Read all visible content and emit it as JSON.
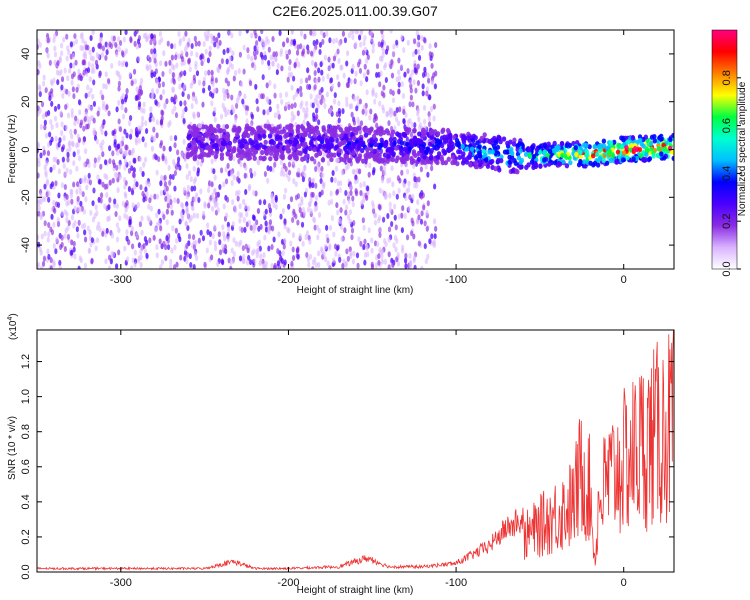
{
  "chart_data": [
    {
      "type": "heatmap",
      "title": "C2E6.2025.011.00.39.G07",
      "xlabel": "Height of straight line (km)",
      "ylabel": "Frequency (Hz)",
      "xlim": [
        -350,
        30
      ],
      "ylim": [
        -50,
        50
      ],
      "x_ticks": [
        -300,
        -200,
        -100,
        0
      ],
      "y_ticks": [
        -40,
        -20,
        0,
        20,
        40
      ],
      "colorbar": {
        "label": "Normalized spectral amplitude",
        "range": [
          0,
          1
        ],
        "ticks": [
          0.0,
          0.2,
          0.4,
          0.6,
          0.8
        ],
        "colors": [
          "#ffffff",
          "#d9b3ff",
          "#8a2be2",
          "#4b00ff",
          "#0000ff",
          "#00c0ff",
          "#00ffd0",
          "#00ff40",
          "#ffff00",
          "#ff8000",
          "#ff0000",
          "#ff0080"
        ]
      },
      "ridge": {
        "x": [
          -250,
          -200,
          -150,
          -100,
          -80,
          -60,
          -40,
          -20,
          0,
          30
        ],
        "y": [
          3,
          3,
          2,
          1,
          -1,
          -3,
          -2,
          -2,
          0,
          1
        ],
        "amplitude": [
          0.2,
          0.2,
          0.25,
          0.3,
          0.45,
          0.5,
          0.6,
          0.85,
          0.9,
          0.9
        ]
      }
    },
    {
      "type": "line",
      "title": "",
      "xlabel": "Height of straight line (km)",
      "ylabel": "SNR (10 * v/v)",
      "y_multiplier": "(x10^4)",
      "y_multiplier_base": "(x10",
      "y_multiplier_exp": "4",
      "y_multiplier_close": ")",
      "xlim": [
        -350,
        30
      ],
      "ylim": [
        0,
        1.38
      ],
      "x_ticks": [
        -300,
        -200,
        -100,
        0
      ],
      "y_ticks": [
        0.0,
        0.2,
        0.4,
        0.6,
        0.8,
        1.0,
        1.2
      ],
      "color": "#ee3333",
      "series": [
        {
          "x": [
            -350,
            -300,
            -250,
            -233,
            -220,
            -200,
            -170,
            -153,
            -140,
            -120,
            -100,
            -90,
            -80,
            -70,
            -60,
            -50,
            -40,
            -30,
            -25,
            -20,
            -17,
            -15,
            -10,
            0,
            10,
            20,
            30
          ],
          "y": [
            0.02,
            0.02,
            0.02,
            0.06,
            0.02,
            0.02,
            0.03,
            0.08,
            0.03,
            0.03,
            0.05,
            0.1,
            0.15,
            0.25,
            0.3,
            0.4,
            0.5,
            0.6,
            0.9,
            0.7,
            0.05,
            0.6,
            0.8,
            0.95,
            1.1,
            1.2,
            1.3
          ]
        }
      ]
    }
  ]
}
